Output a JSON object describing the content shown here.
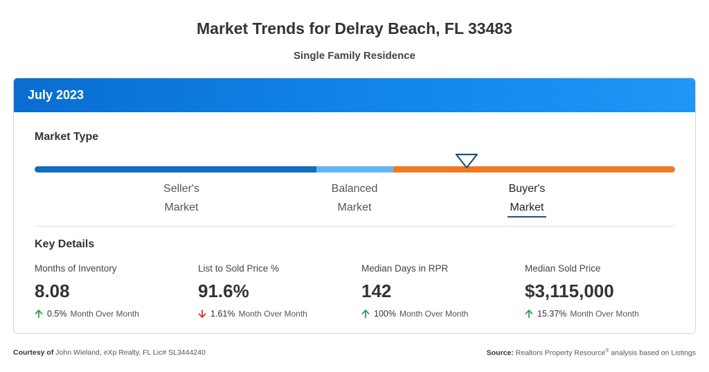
{
  "title": "Market Trends for Delray Beach, FL 33483",
  "subtitle": "Single Family Residence",
  "card": {
    "period": "July 2023",
    "market_type": {
      "heading": "Market Type",
      "segments": [
        {
          "name": "Seller's Market",
          "line1": "Seller's",
          "line2": "Market",
          "color": "#0f6ebf"
        },
        {
          "name": "Balanced Market",
          "line1": "Balanced",
          "line2": "Market",
          "color": "#63b6f3"
        },
        {
          "name": "Buyer's Market",
          "line1": "Buyer's",
          "line2": "Market",
          "color": "#f07a1f"
        }
      ],
      "selected": "Buyer's Market"
    },
    "key_details": {
      "heading": "Key Details",
      "stats": [
        {
          "label": "Months of Inventory",
          "value": "8.08",
          "direction": "up",
          "change": "0.5%",
          "period": "Month Over Month"
        },
        {
          "label": "List to Sold Price %",
          "value": "91.6%",
          "direction": "down",
          "change": "1.61%",
          "period": "Month Over Month"
        },
        {
          "label": "Median Days in RPR",
          "value": "142",
          "direction": "up",
          "change": "100%",
          "period": "Month Over Month"
        },
        {
          "label": "Median Sold Price",
          "value": "$3,115,000",
          "direction": "up",
          "change": "15.37%",
          "period": "Month Over Month"
        }
      ]
    }
  },
  "footer": {
    "courtesy_label": "Courtesy of",
    "courtesy_text": "John Wieland, eXp Realty, FL Lic# SL3444240",
    "source_label": "Source:",
    "source_text": "Realtors Property Resource",
    "source_mark": "®",
    "source_suffix": "analysis based on Listings"
  },
  "colors": {
    "accent": "#1186ea",
    "up": "#2e9e4f",
    "down": "#d9362c"
  }
}
